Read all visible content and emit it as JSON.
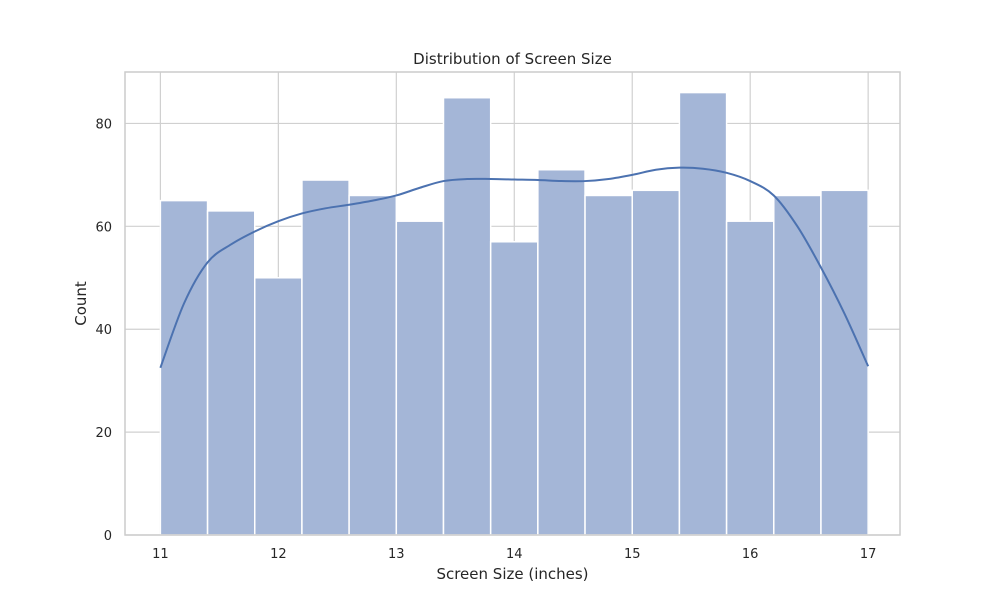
{
  "chart_data": {
    "type": "bar",
    "subtype": "histogram_with_kde",
    "title": "Distribution of Screen Size",
    "xlabel": "Screen Size (inches)",
    "ylabel": "Count",
    "xlim": [
      10.7,
      17.27
    ],
    "ylim": [
      0,
      90
    ],
    "xticks": [
      11,
      12,
      13,
      14,
      15,
      16,
      17
    ],
    "yticks": [
      0,
      20,
      40,
      60,
      80
    ],
    "grid": true,
    "legend": "none",
    "bin_edges": [
      11.0,
      11.4,
      11.8,
      12.2,
      12.6,
      13.0,
      13.4,
      13.8,
      14.2,
      14.6,
      15.0,
      15.4,
      15.8,
      16.2,
      16.6,
      17.0
    ],
    "values": [
      65,
      63,
      50,
      69,
      66,
      61,
      85,
      57,
      71,
      66,
      67,
      86,
      61,
      66,
      67
    ],
    "kde": {
      "x": [
        11.0,
        11.2,
        11.4,
        11.6,
        11.8,
        12.0,
        12.2,
        12.4,
        12.6,
        12.8,
        13.0,
        13.2,
        13.4,
        13.6,
        13.8,
        14.0,
        14.2,
        14.4,
        14.6,
        14.8,
        15.0,
        15.2,
        15.4,
        15.6,
        15.8,
        16.0,
        16.2,
        16.4,
        16.6,
        16.8,
        17.0
      ],
      "y": [
        32.5,
        45,
        53,
        56.5,
        59,
        61,
        62.5,
        63.5,
        64.2,
        65,
        66,
        67.5,
        68.8,
        69.2,
        69.2,
        69.1,
        69.0,
        68.8,
        68.8,
        69.2,
        70.0,
        71.0,
        71.4,
        71.2,
        70.4,
        68.8,
        66.0,
        60.0,
        52.0,
        43.0,
        32.8
      ]
    },
    "colors": {
      "bar_fill": "#a4b6d7",
      "bar_edge": "#ffffff",
      "kde_line": "#4c72b0",
      "grid": "#d0d0d0",
      "frame": "#cccccc",
      "text": "#262626"
    }
  }
}
